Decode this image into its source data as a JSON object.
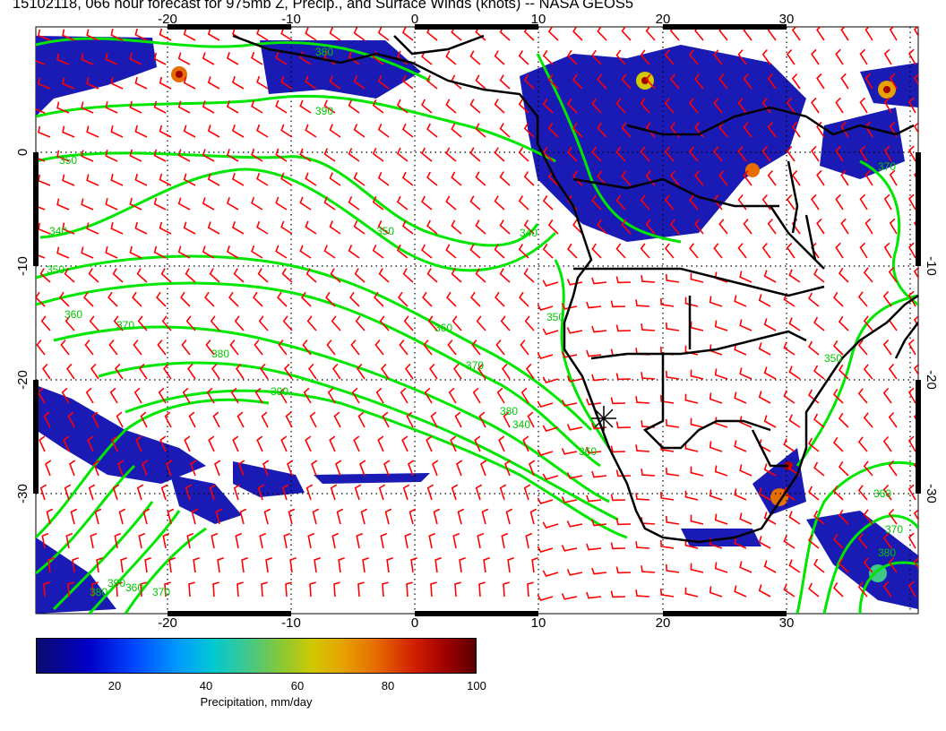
{
  "title": "15102118, 066 hour forecast for 975mb Z, Precip., and Surface Winds (knots) -- NASA GEOS5",
  "map": {
    "lon_ticks": [
      "-20",
      "-10",
      "0",
      "10",
      "20",
      "30"
    ],
    "lat_ticks": [
      "0",
      "-10",
      "-20",
      "-30"
    ],
    "contour_labels": [
      "340",
      "350",
      "360",
      "370",
      "380",
      "390",
      "350",
      "360",
      "370",
      "380",
      "340",
      "350",
      "360",
      "370",
      "380",
      "350",
      "360",
      "370",
      "380",
      "390",
      "340",
      "350",
      "360",
      "370",
      "380",
      "390"
    ],
    "colors": {
      "contour": "#00e600",
      "wind_barb": "#ff0000",
      "coastline": "#000000",
      "grid": "#000000",
      "precip_low": "#0b0b6e",
      "precip_high": "#5a0000"
    },
    "marker": "asterisk-marker"
  },
  "colorbar": {
    "ticks": [
      "20",
      "40",
      "60",
      "80",
      "100"
    ],
    "label": "Precipitation, mm/day",
    "min": 0,
    "max": 100
  }
}
